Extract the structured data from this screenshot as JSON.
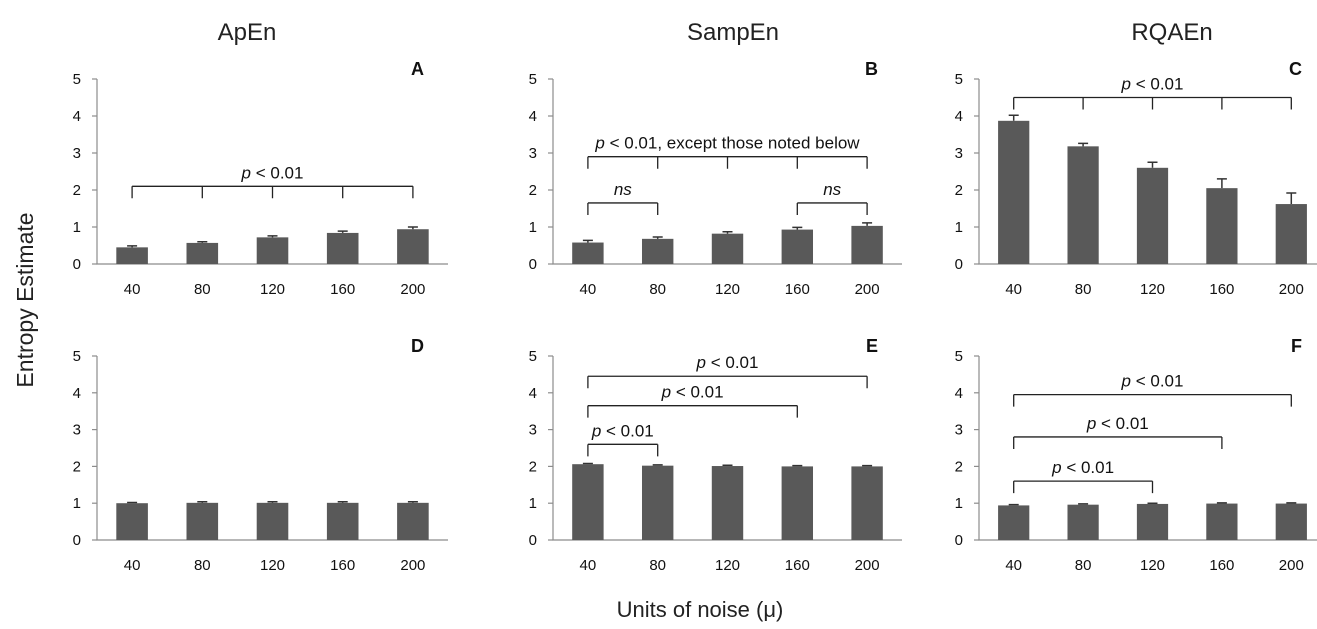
{
  "column_titles": [
    "ApEn",
    "SampEn",
    "RQAEn"
  ],
  "y_axis_label": "Entropy Estimate",
  "x_axis_label": "Units of noise (μ)",
  "chart_data": [
    {
      "panel": "A",
      "type": "bar",
      "categories": [
        "40",
        "80",
        "120",
        "160",
        "200"
      ],
      "values": [
        0.45,
        0.57,
        0.72,
        0.84,
        0.94
      ],
      "errors": [
        0.04,
        0.03,
        0.04,
        0.05,
        0.06
      ],
      "ylim": [
        0,
        5
      ],
      "yticks": [
        0,
        1,
        2,
        3,
        4,
        5
      ],
      "annotations": [
        {
          "text_italic": "p",
          "text": " < 0.01",
          "from": 0,
          "ticks": [
            0,
            1,
            2,
            3,
            4
          ],
          "level": 2.1
        }
      ]
    },
    {
      "panel": "B",
      "type": "bar",
      "categories": [
        "40",
        "80",
        "120",
        "160",
        "200"
      ],
      "values": [
        0.58,
        0.68,
        0.82,
        0.93,
        1.03
      ],
      "errors": [
        0.06,
        0.05,
        0.05,
        0.06,
        0.08
      ],
      "ylim": [
        0,
        5
      ],
      "yticks": [
        0,
        1,
        2,
        3,
        4,
        5
      ],
      "annotations": [
        {
          "text_italic": "p",
          "text": " < 0.01, except those noted below",
          "ticks": [
            0,
            1,
            2,
            3,
            4
          ],
          "level": 2.9
        },
        {
          "text_italic": "ns",
          "text": "",
          "ticks": [
            0,
            1
          ],
          "level": 1.65
        },
        {
          "text_italic": "ns",
          "text": "",
          "ticks": [
            3,
            4
          ],
          "level": 1.65
        }
      ]
    },
    {
      "panel": "C",
      "type": "bar",
      "categories": [
        "40",
        "80",
        "120",
        "160",
        "200"
      ],
      "values": [
        3.87,
        3.18,
        2.6,
        2.05,
        1.62
      ],
      "errors": [
        0.15,
        0.08,
        0.15,
        0.25,
        0.3
      ],
      "ylim": [
        0,
        5
      ],
      "yticks": [
        0,
        1,
        2,
        3,
        4,
        5
      ],
      "annotations": [
        {
          "text_italic": "p",
          "text": " < 0.01",
          "ticks": [
            0,
            1,
            2,
            3,
            4
          ],
          "level": 4.5
        }
      ]
    },
    {
      "panel": "D",
      "type": "bar",
      "categories": [
        "40",
        "80",
        "120",
        "160",
        "200"
      ],
      "values": [
        1.0,
        1.01,
        1.01,
        1.01,
        1.01
      ],
      "errors": [
        0.02,
        0.03,
        0.03,
        0.03,
        0.03
      ],
      "ylim": [
        0,
        5
      ],
      "yticks": [
        0,
        1,
        2,
        3,
        4,
        5
      ],
      "annotations": []
    },
    {
      "panel": "E",
      "type": "bar",
      "categories": [
        "40",
        "80",
        "120",
        "160",
        "200"
      ],
      "values": [
        2.06,
        2.02,
        2.01,
        2.0,
        2.0
      ],
      "errors": [
        0.02,
        0.02,
        0.02,
        0.02,
        0.02
      ],
      "ylim": [
        0,
        5
      ],
      "yticks": [
        0,
        1,
        2,
        3,
        4,
        5
      ],
      "annotations": [
        {
          "text_italic": "p",
          "text": " < 0.01",
          "ticks": [
            0,
            4
          ],
          "level": 4.45
        },
        {
          "text_italic": "p",
          "text": " < 0.01",
          "ticks": [
            0,
            3
          ],
          "level": 3.65
        },
        {
          "text_italic": "p",
          "text": " < 0.01",
          "ticks": [
            0,
            1
          ],
          "level": 2.6
        }
      ]
    },
    {
      "panel": "F",
      "type": "bar",
      "categories": [
        "40",
        "80",
        "120",
        "160",
        "200"
      ],
      "values": [
        0.94,
        0.96,
        0.98,
        0.99,
        0.99
      ],
      "errors": [
        0.02,
        0.02,
        0.02,
        0.02,
        0.02
      ],
      "ylim": [
        0,
        5
      ],
      "yticks": [
        0,
        1,
        2,
        3,
        4,
        5
      ],
      "annotations": [
        {
          "text_italic": "p",
          "text": " < 0.01",
          "ticks": [
            0,
            4
          ],
          "level": 3.95
        },
        {
          "text_italic": "p",
          "text": " < 0.01",
          "ticks": [
            0,
            3
          ],
          "level": 2.8
        },
        {
          "text_italic": "p",
          "text": " < 0.01",
          "ticks": [
            0,
            2
          ],
          "level": 1.6
        }
      ]
    }
  ]
}
